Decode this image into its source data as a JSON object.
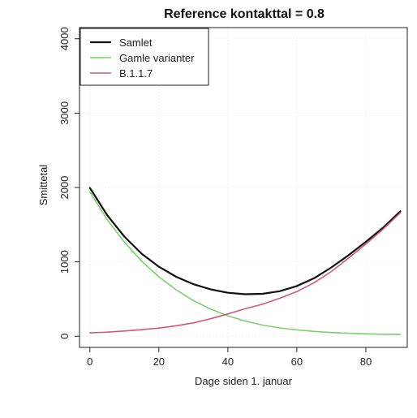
{
  "chart_data": {
    "type": "line",
    "title": "Reference kontakttal = 0.8",
    "xlabel": "Dage siden 1. januar",
    "ylabel": "Smittetal",
    "xlim": [
      -3,
      92
    ],
    "ylim": [
      -150,
      4150
    ],
    "x_ticks": [
      0,
      20,
      40,
      60,
      80
    ],
    "y_ticks": [
      0,
      1000,
      2000,
      3000,
      4000
    ],
    "grid": true,
    "legend_position": "top-left",
    "x": [
      0,
      5,
      10,
      15,
      20,
      25,
      30,
      35,
      40,
      45,
      50,
      55,
      60,
      65,
      70,
      75,
      80,
      85,
      90
    ],
    "series": [
      {
        "name": "Samlet",
        "color": "#111111",
        "values": [
          1995,
          1630,
          1340,
          1110,
          935,
          800,
          700,
          630,
          585,
          565,
          570,
          605,
          675,
          780,
          925,
          1090,
          1270,
          1460,
          1680
        ]
      },
      {
        "name": "Gamle varianter",
        "color": "#7ccf6a",
        "values": [
          1940,
          1570,
          1265,
          1010,
          800,
          625,
          480,
          365,
          275,
          205,
          150,
          112,
          85,
          65,
          50,
          40,
          32,
          27,
          23
        ]
      },
      {
        "name": "B.1.1.7",
        "color": "#d05a78",
        "values": [
          45,
          55,
          70,
          88,
          110,
          140,
          180,
          235,
          300,
          370,
          430,
          510,
          600,
          720,
          870,
          1050,
          1240,
          1440,
          1660
        ]
      }
    ]
  }
}
